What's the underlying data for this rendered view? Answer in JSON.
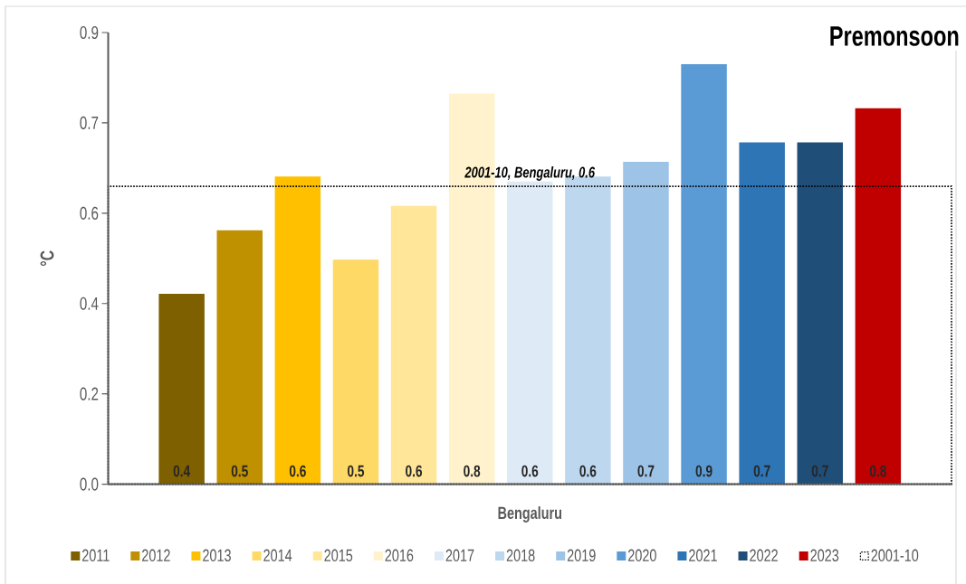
{
  "chart_data": {
    "type": "bar",
    "title": "Premonsoon",
    "ylabel": "°C",
    "categories": [
      "Bengaluru"
    ],
    "ylim": [
      0,
      0.925
    ],
    "yticks": [
      {
        "value": 0,
        "label": "0.0"
      },
      {
        "value": 0.185,
        "label": "0.2"
      },
      {
        "value": 0.37,
        "label": "0.4"
      },
      {
        "value": 0.555,
        "label": "0.6"
      },
      {
        "value": 0.74,
        "label": "0.7"
      },
      {
        "value": 0.925,
        "label": "0.9"
      }
    ],
    "legend": "bottom",
    "series": [
      {
        "name": "2011",
        "color": "#7F6000",
        "values": [
          0.39
        ],
        "value_labels": [
          "0.4"
        ]
      },
      {
        "name": "2012",
        "color": "#BF9000",
        "values": [
          0.52
        ],
        "value_labels": [
          "0.5"
        ]
      },
      {
        "name": "2013",
        "color": "#FFC000",
        "values": [
          0.63
        ],
        "value_labels": [
          "0.6"
        ]
      },
      {
        "name": "2014",
        "color": "#FFD966",
        "values": [
          0.46
        ],
        "value_labels": [
          "0.5"
        ]
      },
      {
        "name": "2015",
        "color": "#FFE699",
        "values": [
          0.57
        ],
        "value_labels": [
          "0.6"
        ]
      },
      {
        "name": "2016",
        "color": "#FFF2CC",
        "values": [
          0.8
        ],
        "value_labels": [
          "0.8"
        ]
      },
      {
        "name": "2017",
        "color": "#DEEBF7",
        "values": [
          0.62
        ],
        "value_labels": [
          "0.6"
        ]
      },
      {
        "name": "2018",
        "color": "#BDD7EE",
        "values": [
          0.63
        ],
        "value_labels": [
          "0.6"
        ]
      },
      {
        "name": "2019",
        "color": "#9DC3E6",
        "values": [
          0.66
        ],
        "value_labels": [
          "0.7"
        ]
      },
      {
        "name": "2020",
        "color": "#5B9BD5",
        "values": [
          0.86
        ],
        "value_labels": [
          "0.9"
        ]
      },
      {
        "name": "2021",
        "color": "#2E75B6",
        "values": [
          0.7
        ],
        "value_labels": [
          "0.7"
        ]
      },
      {
        "name": "2022",
        "color": "#1F4E79",
        "values": [
          0.7
        ],
        "value_labels": [
          "0.7"
        ]
      },
      {
        "name": "2023",
        "color": "#C00000",
        "values": [
          0.77
        ],
        "value_labels": [
          "0.8"
        ]
      },
      {
        "name": "2001-10",
        "color": "#000000",
        "values": [
          0.61
        ],
        "value_labels": [
          "2001-10, Bengaluru, 0.6"
        ],
        "line_style": "dotted"
      }
    ]
  }
}
